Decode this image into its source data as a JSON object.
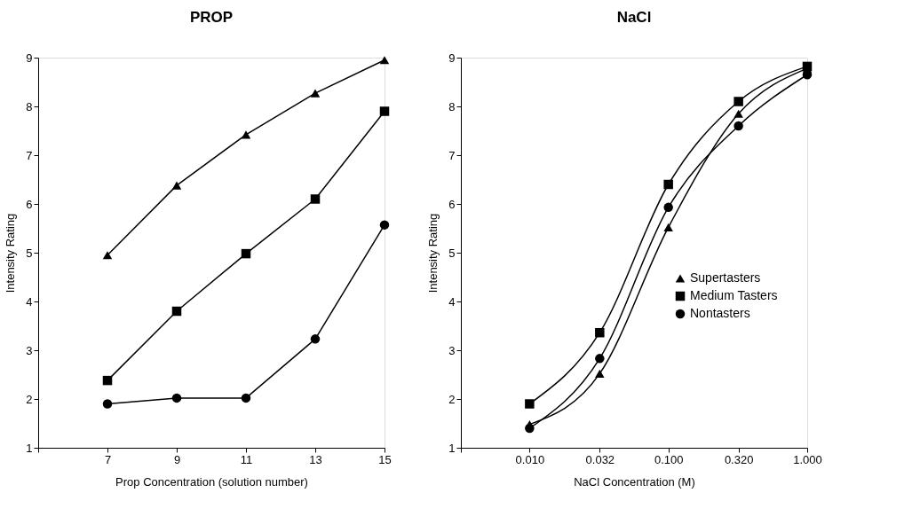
{
  "chart_data": [
    {
      "type": "line",
      "title": "PROP",
      "xlabel": "Prop Concentration (solution number)",
      "ylabel": "Intensity Rating",
      "x": [
        7,
        9,
        11,
        13,
        15
      ],
      "xlim": [
        5,
        15
      ],
      "xticks": [
        {
          "value": 5,
          "label": null
        },
        7,
        9,
        11,
        13,
        15
      ],
      "ylim": [
        1,
        9
      ],
      "yticks": [
        1,
        2,
        3,
        4,
        5,
        6,
        7,
        8,
        9
      ],
      "grid": false,
      "line_style": "solid",
      "series": [
        {
          "color": "#000000",
          "marker": "triangle",
          "values": [
            4.95,
            6.38,
            7.42,
            8.27,
            8.95
          ]
        },
        {
          "color": "#000000",
          "marker": "square",
          "values": [
            2.38,
            3.8,
            4.98,
            6.1,
            7.9
          ]
        },
        {
          "color": "#000000",
          "marker": "circle",
          "values": [
            1.9,
            2.02,
            2.02,
            3.23,
            5.57
          ]
        }
      ]
    },
    {
      "type": "line",
      "title": "NaCl",
      "xlabel": "NaCl Concentration (M)",
      "ylabel": "Intensity Rating",
      "log": "x",
      "x": [
        0.01,
        0.032,
        0.1,
        0.32,
        1.0
      ],
      "xlim": [
        0.0032,
        1.0
      ],
      "xticks": [
        {
          "value": 0.0032,
          "label": null
        },
        {
          "value": 0.01,
          "label": "0.010"
        },
        {
          "value": 0.032,
          "label": "0.032"
        },
        {
          "value": 0.1,
          "label": "0.100"
        },
        {
          "value": 0.32,
          "label": "0.320"
        },
        {
          "value": 1.0,
          "label": "1.000"
        }
      ],
      "ylim": [
        1,
        9
      ],
      "yticks": [
        1,
        2,
        3,
        4,
        5,
        6,
        7,
        8,
        9
      ],
      "grid": false,
      "legend": "right",
      "line_style": "solid",
      "series": [
        {
          "name": "Supertasters",
          "color": "#000000",
          "marker": "triangle",
          "values": [
            1.48,
            2.52,
            5.52,
            7.85,
            8.78
          ]
        },
        {
          "name": "Medium Tasters",
          "color": "#000000",
          "marker": "square",
          "values": [
            1.9,
            3.36,
            6.4,
            8.1,
            8.82
          ]
        },
        {
          "name": "Nontasters",
          "color": "#000000",
          "marker": "circle",
          "values": [
            1.4,
            2.83,
            5.93,
            7.6,
            8.65
          ]
        }
      ]
    }
  ]
}
